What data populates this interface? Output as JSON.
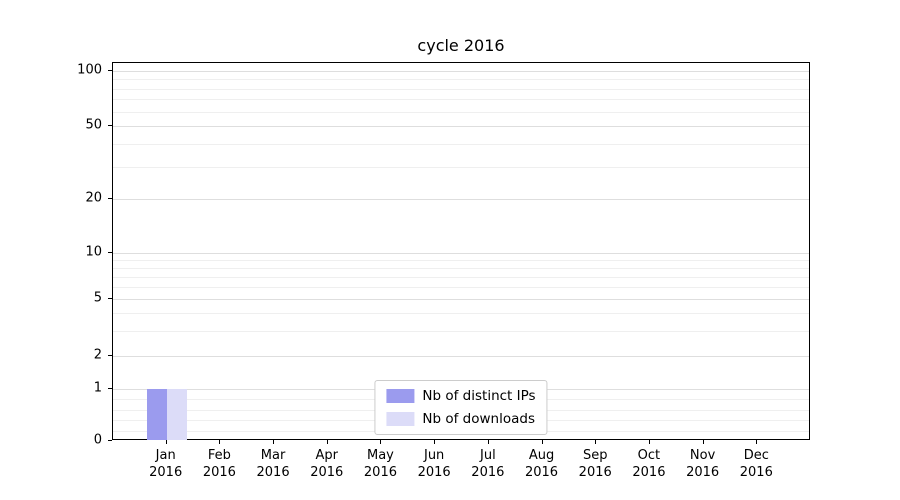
{
  "chart_data": {
    "type": "bar",
    "title": "cycle 2016",
    "x_year": "2016",
    "months": [
      "Jan",
      "Feb",
      "Mar",
      "Apr",
      "May",
      "Jun",
      "Jul",
      "Aug",
      "Sep",
      "Oct",
      "Nov",
      "Dec"
    ],
    "series": [
      {
        "name": "Nb of distinct IPs",
        "color": "#9b9bee",
        "values": [
          1,
          0,
          0,
          0,
          0,
          0,
          0,
          0,
          0,
          0,
          0,
          0
        ]
      },
      {
        "name": "Nb of downloads",
        "color": "#dcdcf8",
        "values": [
          1,
          0,
          0,
          0,
          0,
          0,
          0,
          0,
          0,
          0,
          0,
          0
        ]
      }
    ],
    "y_axis": {
      "scale": "log",
      "major_ticks": [
        100,
        50,
        20,
        10,
        5,
        2,
        1,
        0
      ],
      "minor_gridlines": [
        90,
        80,
        70,
        60,
        40,
        30,
        9,
        8,
        7,
        6,
        4,
        3,
        0.8,
        0.6,
        0.4,
        0.2
      ],
      "range": [
        0,
        110
      ]
    },
    "legend": {
      "position": "lower center",
      "entries": [
        "Nb of distinct IPs",
        "Nb of downloads"
      ]
    },
    "grid": true,
    "colors": {
      "grid_minor": "#efefef",
      "grid_major": "#dedede",
      "axis": "#000000",
      "legend_border": "#cccccc"
    }
  }
}
